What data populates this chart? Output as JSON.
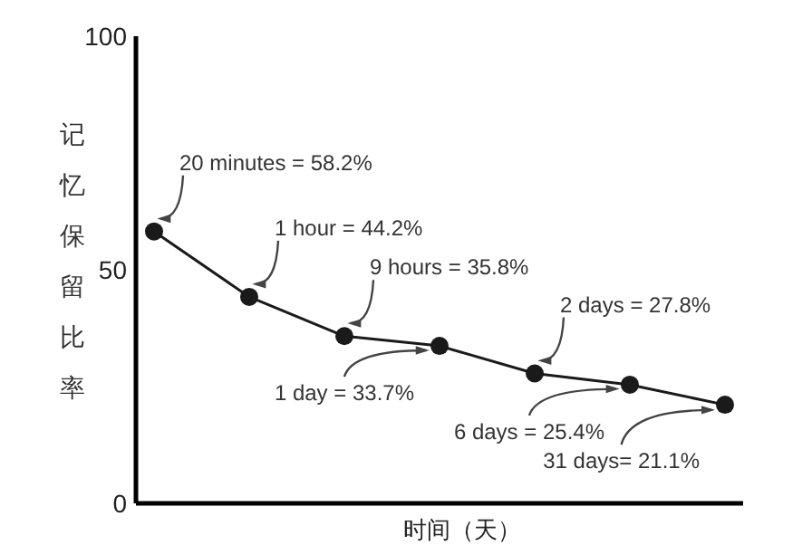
{
  "chart_data": {
    "type": "line",
    "categories": [
      null,
      null,
      null,
      null,
      null,
      null,
      null
    ],
    "values": [
      58.2,
      44.2,
      35.8,
      33.7,
      27.8,
      25.4,
      21.1
    ],
    "value_labels": [
      "20 minutes = 58.2%",
      "1 hour = 44.2%",
      "9 hours = 35.8%",
      "1 day = 33.7%",
      "2 days = 27.8%",
      "6 days = 25.4%",
      "31 days= 21.1%"
    ],
    "color": "#1a1a1a",
    "marker": "circle",
    "line_style": "solid",
    "ylim": [
      0,
      100
    ],
    "yticks": [
      0,
      50,
      100
    ],
    "tick_labels": "y",
    "grid": false,
    "xlabel": "时间（天）",
    "ylabel": "记忆保留比率"
  }
}
